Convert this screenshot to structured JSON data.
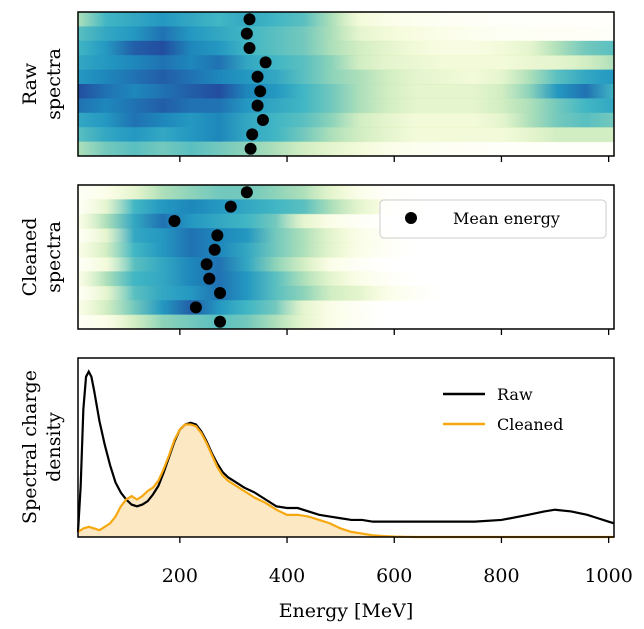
{
  "chart_data": [
    {
      "type": "heatmap",
      "ylabel_lines": [
        "Raw",
        "spectra"
      ],
      "xlim": [
        10,
        1010
      ],
      "rows": [
        {
          "spectrum": [
            0.3,
            0.5,
            0.55,
            0.6,
            0.55,
            0.5,
            0.55,
            0.5,
            0.45,
            0.3,
            0.15,
            0.1,
            0.08,
            0.06,
            0.05,
            0.04,
            0.03,
            0.03,
            0.02,
            0.02
          ],
          "mean_energy": 330
        },
        {
          "spectrum": [
            0.45,
            0.55,
            0.6,
            0.7,
            0.6,
            0.55,
            0.5,
            0.45,
            0.4,
            0.3,
            0.2,
            0.15,
            0.12,
            0.1,
            0.08,
            0.06,
            0.06,
            0.05,
            0.05,
            0.04
          ],
          "mean_energy": 325
        },
        {
          "spectrum": [
            0.5,
            0.6,
            0.75,
            0.8,
            0.65,
            0.6,
            0.5,
            0.45,
            0.4,
            0.3,
            0.25,
            0.2,
            0.15,
            0.12,
            0.12,
            0.15,
            0.2,
            0.3,
            0.4,
            0.45
          ],
          "mean_energy": 330
        },
        {
          "spectrum": [
            0.55,
            0.6,
            0.65,
            0.7,
            0.65,
            0.7,
            0.55,
            0.5,
            0.45,
            0.35,
            0.25,
            0.2,
            0.18,
            0.15,
            0.15,
            0.15,
            0.18,
            0.2,
            0.25,
            0.3
          ],
          "mean_energy": 360
        },
        {
          "spectrum": [
            0.6,
            0.65,
            0.7,
            0.75,
            0.7,
            0.65,
            0.6,
            0.55,
            0.45,
            0.35,
            0.3,
            0.25,
            0.2,
            0.18,
            0.15,
            0.2,
            0.3,
            0.45,
            0.55,
            0.6
          ],
          "mean_energy": 345
        },
        {
          "spectrum": [
            0.8,
            0.7,
            0.65,
            0.7,
            0.75,
            0.8,
            0.65,
            0.6,
            0.5,
            0.4,
            0.3,
            0.25,
            0.2,
            0.2,
            0.2,
            0.25,
            0.35,
            0.6,
            0.7,
            0.5
          ],
          "mean_energy": 350
        },
        {
          "spectrum": [
            0.7,
            0.65,
            0.7,
            0.75,
            0.7,
            0.7,
            0.6,
            0.55,
            0.5,
            0.4,
            0.3,
            0.25,
            0.2,
            0.2,
            0.2,
            0.25,
            0.3,
            0.4,
            0.5,
            0.55
          ],
          "mean_energy": 345
        },
        {
          "spectrum": [
            0.55,
            0.6,
            0.7,
            0.65,
            0.6,
            0.65,
            0.55,
            0.5,
            0.45,
            0.35,
            0.25,
            0.2,
            0.15,
            0.15,
            0.15,
            0.2,
            0.3,
            0.4,
            0.45,
            0.4
          ],
          "mean_energy": 355
        },
        {
          "spectrum": [
            0.45,
            0.55,
            0.6,
            0.55,
            0.6,
            0.65,
            0.55,
            0.5,
            0.4,
            0.3,
            0.25,
            0.2,
            0.15,
            0.15,
            0.15,
            0.15,
            0.2,
            0.25,
            0.25,
            0.25
          ],
          "mean_energy": 335
        },
        {
          "spectrum": [
            0.3,
            0.4,
            0.45,
            0.4,
            0.45,
            0.4,
            0.35,
            0.3,
            0.25,
            0.2,
            0.15,
            0.1,
            0.08,
            0.06,
            0.05,
            0.04,
            0.04,
            0.03,
            0.03,
            0.03
          ],
          "mean_energy": 332
        }
      ]
    },
    {
      "type": "heatmap",
      "ylabel_lines": [
        "Cleaned",
        "spectra"
      ],
      "xlim": [
        10,
        1010
      ],
      "legend": {
        "label": "Mean energy",
        "position": "top-right"
      },
      "rows": [
        {
          "spectrum": [
            0.05,
            0.1,
            0.2,
            0.3,
            0.35,
            0.4,
            0.4,
            0.35,
            0.3,
            0.2,
            0.1,
            0.03,
            0,
            0,
            0,
            0,
            0,
            0,
            0,
            0
          ],
          "mean_energy": 325
        },
        {
          "spectrum": [
            0.05,
            0.2,
            0.5,
            0.6,
            0.65,
            0.6,
            0.55,
            0.5,
            0.45,
            0.3,
            0.2,
            0.1,
            0.05,
            0,
            0,
            0,
            0,
            0,
            0,
            0
          ],
          "mean_energy": 295
        },
        {
          "spectrum": [
            0.1,
            0.3,
            0.55,
            0.7,
            0.6,
            0.55,
            0.5,
            0.4,
            0.2,
            0.1,
            0.05,
            0,
            0,
            0,
            0,
            0,
            0,
            0,
            0,
            0
          ],
          "mean_energy": 190
        },
        {
          "spectrum": [
            0.05,
            0.2,
            0.55,
            0.6,
            0.7,
            0.65,
            0.6,
            0.4,
            0.3,
            0.2,
            0.1,
            0.05,
            0,
            0,
            0,
            0,
            0,
            0,
            0,
            0
          ],
          "mean_energy": 270
        },
        {
          "spectrum": [
            0.1,
            0.25,
            0.5,
            0.6,
            0.7,
            0.65,
            0.55,
            0.4,
            0.3,
            0.2,
            0.1,
            0.05,
            0,
            0,
            0,
            0,
            0,
            0,
            0,
            0
          ],
          "mean_energy": 265
        },
        {
          "spectrum": [
            0.05,
            0.15,
            0.45,
            0.55,
            0.65,
            0.7,
            0.55,
            0.35,
            0.25,
            0.1,
            0.05,
            0,
            0,
            0,
            0,
            0,
            0,
            0,
            0,
            0
          ],
          "mean_energy": 250
        },
        {
          "spectrum": [
            0.1,
            0.3,
            0.5,
            0.55,
            0.65,
            0.7,
            0.6,
            0.45,
            0.3,
            0.2,
            0.1,
            0.05,
            0,
            0,
            0,
            0,
            0,
            0,
            0,
            0
          ],
          "mean_energy": 255
        },
        {
          "spectrum": [
            0.05,
            0.2,
            0.45,
            0.55,
            0.6,
            0.7,
            0.6,
            0.45,
            0.35,
            0.25,
            0.2,
            0.1,
            0.05,
            0,
            0,
            0,
            0,
            0,
            0,
            0
          ],
          "mean_energy": 275
        },
        {
          "spectrum": [
            0.1,
            0.25,
            0.4,
            0.6,
            0.75,
            0.6,
            0.5,
            0.4,
            0.2,
            0.1,
            0.05,
            0,
            0,
            0,
            0,
            0,
            0,
            0,
            0,
            0
          ],
          "mean_energy": 230
        },
        {
          "spectrum": [
            0.05,
            0.1,
            0.25,
            0.35,
            0.4,
            0.45,
            0.4,
            0.3,
            0.2,
            0.1,
            0.05,
            0,
            0,
            0,
            0,
            0,
            0,
            0,
            0,
            0
          ],
          "mean_energy": 275
        }
      ]
    },
    {
      "type": "line",
      "ylabel_lines": [
        "Spectral charge",
        "density"
      ],
      "xlabel": "Energy [MeV]",
      "xlim": [
        10,
        1010
      ],
      "xticks": [
        200,
        400,
        600,
        800,
        1000
      ],
      "legend_position": "top-right",
      "series": [
        {
          "name": "Raw",
          "color": "#000000",
          "x": [
            10,
            15,
            20,
            25,
            30,
            35,
            40,
            45,
            50,
            60,
            70,
            80,
            90,
            100,
            110,
            120,
            130,
            140,
            150,
            160,
            170,
            180,
            190,
            200,
            210,
            220,
            230,
            240,
            250,
            260,
            270,
            280,
            290,
            300,
            320,
            340,
            360,
            380,
            400,
            420,
            440,
            460,
            480,
            500,
            520,
            540,
            560,
            580,
            600,
            650,
            700,
            750,
            800,
            850,
            880,
            900,
            930,
            960,
            980,
            1000,
            1010
          ],
          "y": [
            0.03,
            0.3,
            0.75,
            0.94,
            0.97,
            0.94,
            0.86,
            0.77,
            0.68,
            0.54,
            0.42,
            0.32,
            0.26,
            0.22,
            0.19,
            0.18,
            0.19,
            0.21,
            0.25,
            0.3,
            0.38,
            0.47,
            0.56,
            0.63,
            0.66,
            0.67,
            0.66,
            0.62,
            0.56,
            0.49,
            0.43,
            0.38,
            0.35,
            0.33,
            0.29,
            0.26,
            0.22,
            0.18,
            0.17,
            0.17,
            0.15,
            0.13,
            0.12,
            0.11,
            0.1,
            0.1,
            0.09,
            0.09,
            0.09,
            0.09,
            0.09,
            0.09,
            0.1,
            0.13,
            0.15,
            0.16,
            0.15,
            0.13,
            0.11,
            0.09,
            0.08
          ]
        },
        {
          "name": "Cleaned",
          "color": "#f6a810",
          "fill": "#fde8c4",
          "x": [
            10,
            20,
            30,
            40,
            50,
            60,
            70,
            80,
            90,
            100,
            110,
            120,
            130,
            140,
            150,
            160,
            170,
            180,
            190,
            200,
            210,
            220,
            230,
            240,
            250,
            260,
            270,
            280,
            290,
            300,
            320,
            340,
            360,
            380,
            400,
            420,
            440,
            460,
            480,
            500,
            520,
            540,
            560,
            580,
            600,
            620,
            640,
            700,
            800,
            900,
            1010
          ],
          "y": [
            0.03,
            0.05,
            0.06,
            0.05,
            0.04,
            0.06,
            0.08,
            0.12,
            0.18,
            0.22,
            0.24,
            0.22,
            0.24,
            0.27,
            0.29,
            0.33,
            0.4,
            0.48,
            0.57,
            0.63,
            0.66,
            0.66,
            0.65,
            0.61,
            0.55,
            0.48,
            0.41,
            0.36,
            0.33,
            0.31,
            0.27,
            0.23,
            0.2,
            0.16,
            0.13,
            0.13,
            0.12,
            0.1,
            0.08,
            0.05,
            0.03,
            0.02,
            0.01,
            0.005,
            0.002,
            0.001,
            0,
            0,
            0,
            0,
            0
          ]
        }
      ]
    }
  ],
  "colormap": [
    "#ffffd9",
    "#edf8b1",
    "#c7e9b4",
    "#7fcdbb",
    "#41b6c4",
    "#1d91c0",
    "#225ea8",
    "#253494",
    "#081d58"
  ]
}
